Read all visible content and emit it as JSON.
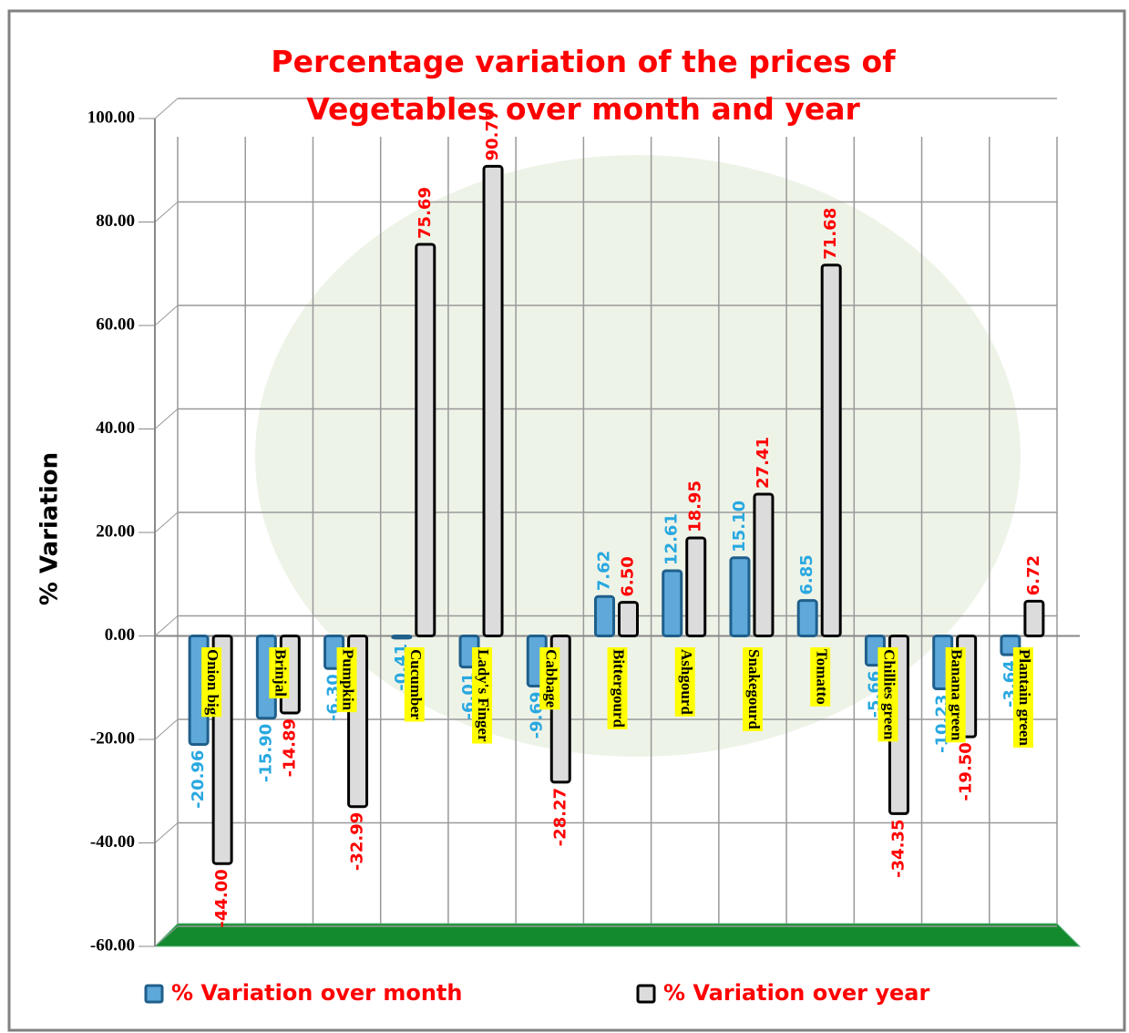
{
  "chart_data": {
    "type": "bar",
    "title": "Percentage variation of the prices of Vegetables over month and year",
    "y_label": "% Variation",
    "categories": [
      "Onion big",
      "Brinjal",
      "Pumpkin",
      "Cucumber",
      "Lady's Finger",
      "Cabbage",
      "Bittergourd",
      "Ashgourd",
      "Snakegourd",
      "Tomatto",
      "Chillies green",
      "Banana green",
      "Plantain green"
    ],
    "series": [
      {
        "name": "% Variation over month",
        "color": "#5ea8da",
        "label_color": "#29a8e0",
        "values": [
          -20.96,
          -15.9,
          -6.3,
          -0.41,
          -6.01,
          -9.69,
          7.62,
          12.61,
          15.1,
          6.85,
          -5.66,
          -10.23,
          -3.64
        ],
        "value_labels": [
          "-20.96",
          "-15.90",
          "-6.30",
          "-0.41",
          "-6.01",
          "-9.69",
          "7.62",
          "12.61",
          "15.10",
          "6.85",
          "-5.66",
          "-10.23",
          "-3.64"
        ]
      },
      {
        "name": "% Variation over year",
        "color": "#dcdcdc",
        "label_color": "#ff0000",
        "values": [
          -44.0,
          -14.89,
          -32.99,
          75.69,
          90.77,
          -28.27,
          6.5,
          18.95,
          27.41,
          71.68,
          -34.35,
          -19.5,
          6.72
        ],
        "value_labels": [
          "-44.00",
          "-14.89",
          "-32.99",
          "75.69",
          "90.77",
          "-28.27",
          "6.50",
          "18.95",
          "27.41",
          "71.68",
          "-34.35",
          "-19.50",
          "6.72"
        ]
      }
    ],
    "ylim": [
      -60,
      100
    ],
    "yticks": [
      {
        "value": -60,
        "label": "-60.00"
      },
      {
        "value": -40,
        "label": "-40.00"
      },
      {
        "value": -20,
        "label": "-20.00"
      },
      {
        "value": 0,
        "label": "0.00"
      },
      {
        "value": 20,
        "label": "20.00"
      },
      {
        "value": 40,
        "label": "40.00"
      },
      {
        "value": 60,
        "label": "60.00"
      },
      {
        "value": 80,
        "label": "80.00"
      },
      {
        "value": 100,
        "label": "100.00"
      }
    ],
    "grid": true,
    "legend": "bottom"
  }
}
